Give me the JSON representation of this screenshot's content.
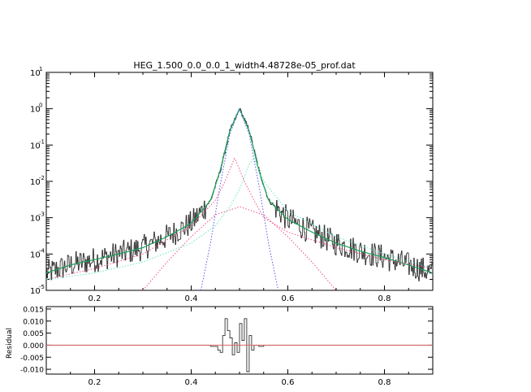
{
  "colors": {
    "background": "#ffffff",
    "axes": "#000000",
    "data": "#333333",
    "model_total": "#1aa05a",
    "component_blue": "#5a5ae6",
    "component_pink": "#f0508c",
    "component_cyan": "#64e6c8",
    "residual_model": "#e06464"
  },
  "chart_data": [
    {
      "type": "line",
      "title": "HEG_1.500_0.0_0.0_1_width4.48728e-05_prof.dat",
      "xlabel": "",
      "ylabel": "",
      "yscale": "log",
      "xlim": [
        0.1,
        0.9
      ],
      "ylim": [
        1e-05,
        10
      ],
      "grid": false,
      "legend": "none",
      "x_ticks": [
        0.2,
        0.4,
        0.6,
        0.8
      ],
      "x_tick_labels": [
        "0.2",
        "0.4",
        "0.6",
        "0.8"
      ],
      "y_tick_exponents": [
        "-5",
        "-4",
        "-3",
        "-2",
        "-1",
        "0",
        "1"
      ],
      "y_tick_base": "10",
      "series": [
        {
          "style": "solid",
          "color": "#333333",
          "x": [
            0.1,
            0.15,
            0.2,
            0.25,
            0.3,
            0.35,
            0.4,
            0.44,
            0.46,
            0.48,
            0.5,
            0.52,
            0.54,
            0.56,
            0.6,
            0.65,
            0.7,
            0.75,
            0.8,
            0.85,
            0.9
          ],
          "y": [
            3e-05,
            5e-05,
            7e-05,
            0.0001,
            0.00015,
            0.0003,
            0.0007,
            0.003,
            0.02,
            0.25,
            1.0,
            0.25,
            0.02,
            0.003,
            0.0009,
            0.0004,
            0.0002,
            0.00012,
            8e-05,
            5e-05,
            3e-05
          ],
          "noisy": true
        },
        {
          "style": "solid",
          "color": "#1aa05a",
          "x": [
            0.1,
            0.15,
            0.2,
            0.25,
            0.3,
            0.35,
            0.4,
            0.44,
            0.46,
            0.48,
            0.5,
            0.52,
            0.54,
            0.56,
            0.6,
            0.65,
            0.7,
            0.75,
            0.8,
            0.85,
            0.9
          ],
          "y": [
            3e-05,
            5e-05,
            7e-05,
            0.0001,
            0.00015,
            0.0003,
            0.0007,
            0.003,
            0.02,
            0.25,
            1.0,
            0.25,
            0.02,
            0.003,
            0.0009,
            0.0004,
            0.0002,
            0.00012,
            8e-05,
            5e-05,
            3e-05
          ]
        },
        {
          "style": "dotted",
          "color": "#5a5ae6",
          "x": [
            0.42,
            0.44,
            0.46,
            0.48,
            0.5,
            0.52,
            0.54,
            0.56,
            0.58
          ],
          "y": [
            1e-05,
            0.0002,
            0.008,
            0.2,
            0.95,
            0.2,
            0.008,
            0.0002,
            1e-05
          ]
        },
        {
          "style": "dotted",
          "color": "#f0508c",
          "x": [
            0.3,
            0.35,
            0.4,
            0.45,
            0.5,
            0.55,
            0.6,
            0.65,
            0.7
          ],
          "y": [
            1e-05,
            6e-05,
            0.0003,
            0.0012,
            0.002,
            0.0012,
            0.0003,
            6e-05,
            1e-05
          ]
        },
        {
          "style": "dotted",
          "color": "#f0508c",
          "x": [
            0.1,
            0.2,
            0.3,
            0.4,
            0.45,
            0.47,
            0.49,
            0.51,
            0.53,
            0.55,
            0.6,
            0.7,
            0.8,
            0.9
          ],
          "y": [
            2e-05,
            4e-05,
            0.0001,
            0.0006,
            0.003,
            0.01,
            0.045,
            0.01,
            0.003,
            0.001,
            0.0004,
            0.00015,
            7e-05,
            4e-05
          ]
        },
        {
          "style": "dotted",
          "color": "#64e6c8",
          "x": [
            0.1,
            0.2,
            0.3,
            0.4,
            0.45,
            0.48,
            0.5,
            0.52,
            0.53,
            0.55,
            0.6,
            0.7,
            0.8,
            0.9
          ],
          "y": [
            2e-05,
            3e-05,
            6e-05,
            0.0002,
            0.0006,
            0.002,
            0.006,
            0.03,
            0.045,
            0.01,
            0.0015,
            0.0003,
            0.0001,
            4e-05
          ]
        }
      ]
    },
    {
      "type": "line",
      "title": "",
      "xlabel": "",
      "ylabel": "Residual",
      "xlim": [
        0.1,
        0.9
      ],
      "ylim": [
        -0.012,
        0.016
      ],
      "grid": false,
      "legend": "none",
      "x_ticks": [
        0.2,
        0.4,
        0.6,
        0.8
      ],
      "x_tick_labels": [
        "0.2",
        "0.4",
        "0.6",
        "0.8"
      ],
      "y_ticks": [
        -0.01,
        -0.005,
        0.0,
        0.005,
        0.01,
        0.015
      ],
      "y_tick_labels": [
        "-0.010",
        "-0.005",
        "0.000",
        "0.005",
        "0.010",
        "0.015"
      ],
      "series": [
        {
          "style": "solid",
          "color": "#333333",
          "x": [
            0.1,
            0.44,
            0.455,
            0.46,
            0.465,
            0.47,
            0.475,
            0.48,
            0.485,
            0.49,
            0.495,
            0.5,
            0.505,
            0.51,
            0.515,
            0.52,
            0.525,
            0.53,
            0.54,
            0.55,
            0.9
          ],
          "y": [
            0.0,
            -0.0005,
            -0.002,
            -0.003,
            0.004,
            0.011,
            0.006,
            0.003,
            -0.004,
            0.001,
            -0.003,
            0.009,
            0.002,
            0.011,
            -0.011,
            0.004,
            -0.002,
            0.0,
            -0.0005,
            0.0,
            0.0
          ]
        },
        {
          "style": "solid",
          "color": "#e06464",
          "x": [
            0.1,
            0.9
          ],
          "y": [
            0.0,
            0.0
          ]
        }
      ]
    }
  ]
}
